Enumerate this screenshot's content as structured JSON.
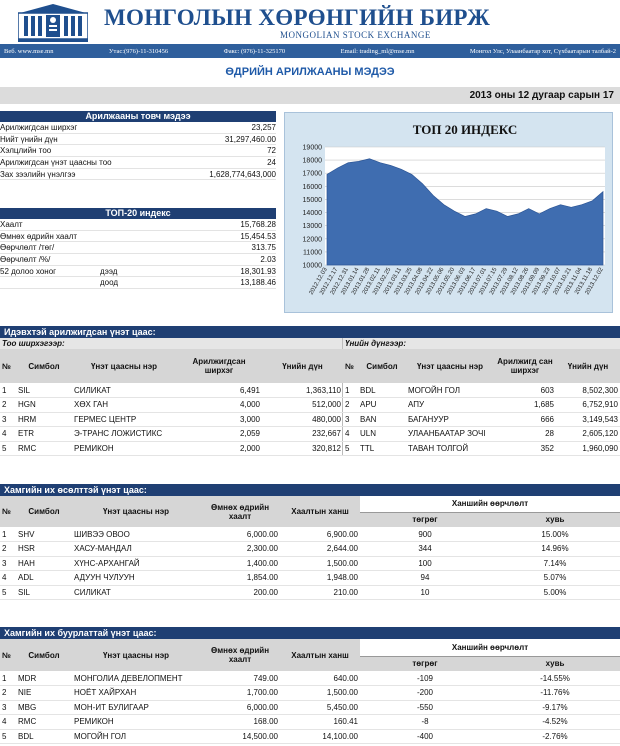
{
  "header": {
    "title": "МОНГОЛЫН ХӨРӨНГИЙН БИРЖ",
    "subtitle": "MONGOLIAN STOCK EXCHANGE",
    "web": "Веб. www.mse.mn",
    "phone": "Утас:(976)-11-310456",
    "fax": "Факс: (976)-11-325170",
    "email": "Email: trading_ml@mse.mn",
    "address": "Монгол Улс, Улаанбаатар хот, Сүхбаатарын талбай-2"
  },
  "report_title": "ӨДРИЙН АРИЛЖААНЫ МЭДЭЭ",
  "report_date": "2013 оны 12 дугаар сарын 17",
  "summary": {
    "heading": "Арилжааны товч мэдээ",
    "rows": [
      {
        "label": "Арилжигдсан ширхэг",
        "value": "23,257"
      },
      {
        "label": "Нийт үнийн дүн",
        "value": "31,297,460.00"
      },
      {
        "label": "Хэлцлийн тоо",
        "value": "72"
      },
      {
        "label": "Арилжигдсан үнэт цаасны тоо",
        "value": "24"
      },
      {
        "label": "Зах зээлийн үнэлгээ",
        "value": "1,628,774,643,000"
      }
    ]
  },
  "top20": {
    "heading": "ТОП-20 индекс",
    "rows": [
      {
        "label": "Хаалт",
        "sub": "",
        "value": "15,768.28"
      },
      {
        "label": "Өмнөх өдрийн хаалт",
        "sub": "",
        "value": "15,454.53"
      },
      {
        "label": "Өөрчлөлт /төг/",
        "sub": "",
        "value": "313.75"
      },
      {
        "label": "Өөрчлөлт /%/",
        "sub": "",
        "value": "2.03"
      },
      {
        "label": "52 долоо хоног",
        "sub": "дээд",
        "value": "18,301.93"
      },
      {
        "label": "",
        "sub": "доод",
        "value": "13,188.46"
      }
    ]
  },
  "chart_data": {
    "type": "area",
    "title": "ТОП 20 ИНДЕКС",
    "xlabel": "",
    "ylabel": "",
    "ylim": [
      10000,
      19000
    ],
    "yticks": [
      "10000",
      "11000",
      "12000",
      "13000",
      "14000",
      "15000",
      "16000",
      "17000",
      "18000",
      "19000"
    ],
    "x": [
      "2012.12.03",
      "2012.12.17",
      "2012.12.31",
      "2013.01.14",
      "2013.01.28",
      "2013.02.11",
      "2013.02.25",
      "2013.03.11",
      "2013.03.25",
      "2013.04.08",
      "2013.04.22",
      "2013.05.06",
      "2013.05.20",
      "2013.06.03",
      "2013.06.17",
      "2013.07.01",
      "2013.07.15",
      "2013.07.29",
      "2013.08.12",
      "2013.08.26",
      "2013.09.09",
      "2013.09.23",
      "2013.10.07",
      "2013.10.21",
      "2013.11.04",
      "2013.11.18",
      "2013.12.02"
    ],
    "values": [
      16900,
      17400,
      17800,
      17900,
      18100,
      17800,
      17600,
      17300,
      16900,
      16200,
      15300,
      14600,
      14100,
      13700,
      13900,
      14300,
      14100,
      13700,
      13900,
      14300,
      13900,
      14300,
      14600,
      14400,
      14600,
      14900,
      15600
    ],
    "grid": true,
    "color": "#3f6db0"
  },
  "active": {
    "heading": "Идэвхтэй арилжигдсан үнэт цаас:",
    "by_volume": {
      "heading": "Тоо ширхэгээр:",
      "columns": [
        "№",
        "Симбол",
        "Үнэт цаасны нэр",
        "Арилжигдсан ширхэг",
        "Үнийн дүн"
      ],
      "rows": [
        [
          "1",
          "SIL",
          "СИЛИКАТ",
          "6,491",
          "1,363,110"
        ],
        [
          "2",
          "HGN",
          "ХӨХ ГАН",
          "4,000",
          "512,000"
        ],
        [
          "3",
          "HRM",
          "ГЕРМЕС ЦЕНТР",
          "3,000",
          "480,000"
        ],
        [
          "4",
          "ETR",
          "Э-ТРАНС ЛОЖИСТИКС",
          "2,059",
          "232,667"
        ],
        [
          "5",
          "RMC",
          "РЕМИКОН",
          "2,000",
          "320,812"
        ]
      ]
    },
    "by_value": {
      "heading": "Үнийн дүнгээр:",
      "columns": [
        "№",
        "Симбол",
        "Үнэт цаасны нэр",
        "Арилжигд сан ширхэг",
        "Үнийн дүн"
      ],
      "rows": [
        [
          "1",
          "BDL",
          "МОГОЙН ГОЛ",
          "603",
          "8,502,300"
        ],
        [
          "2",
          "APU",
          "АПУ",
          "1,685",
          "6,752,910"
        ],
        [
          "3",
          "BAN",
          "БАГАНУУР",
          "666",
          "3,149,543"
        ],
        [
          "4",
          "ULN",
          "УЛААНБААТАР ЗОЧІ",
          "28",
          "2,605,120"
        ],
        [
          "5",
          "TTL",
          "ТАВАН ТОЛГОЙ",
          "352",
          "1,960,090"
        ]
      ]
    }
  },
  "gainers": {
    "heading": "Хамгийн их өсөлттэй үнэт цаас:",
    "columns": [
      "№",
      "Симбол",
      "Үнэт цаасны нэр",
      "Өмнөх өдрийн хаалт",
      "Хаалтын ханш",
      "Ханшийн өөрчлөлт",
      "төгрөг",
      "хувь"
    ],
    "rows": [
      [
        "1",
        "SHV",
        "ШИВЭЭ ОВОО",
        "6,000.00",
        "6,900.00",
        "900",
        "15.00%"
      ],
      [
        "2",
        "HSR",
        "ХАСУ-МАНДАЛ",
        "2,300.00",
        "2,644.00",
        "344",
        "14.96%"
      ],
      [
        "3",
        "HAH",
        "ХҮНС-АРХАНГАЙ",
        "1,400.00",
        "1,500.00",
        "100",
        "7.14%"
      ],
      [
        "4",
        "ADL",
        "АДУУН ЧУЛУУН",
        "1,854.00",
        "1,948.00",
        "94",
        "5.07%"
      ],
      [
        "5",
        "SIL",
        "СИЛИКАТ",
        "200.00",
        "210.00",
        "10",
        "5.00%"
      ]
    ]
  },
  "losers": {
    "heading": "Хамгийн их буурлаттай үнэт цаас:",
    "columns": [
      "№",
      "Симбол",
      "Үнэт цаасны нэр",
      "Өмнөх өдрийн хаалт",
      "Хаалтын ханш",
      "Ханшийн өөрчлөлт",
      "төгрөг",
      "хувь"
    ],
    "rows": [
      [
        "1",
        "MDR",
        "МОНГОЛИА ДЕВЕЛОПМЕНТ",
        "749.00",
        "640.00",
        "-109",
        "-14.55%"
      ],
      [
        "2",
        "NIE",
        "НОЁТ ХАЙРХАН",
        "1,700.00",
        "1,500.00",
        "-200",
        "-11.76%"
      ],
      [
        "3",
        "MBG",
        "МОН-ИТ БУЛИГААР",
        "6,000.00",
        "5,450.00",
        "-550",
        "-9.17%"
      ],
      [
        "4",
        "RMC",
        "РЕМИКОН",
        "168.00",
        "160.41",
        "-8",
        "-4.52%"
      ],
      [
        "5",
        "BDL",
        "МОГОЙН ГОЛ",
        "14,500.00",
        "14,100.00",
        "-400",
        "-2.76%"
      ]
    ]
  }
}
